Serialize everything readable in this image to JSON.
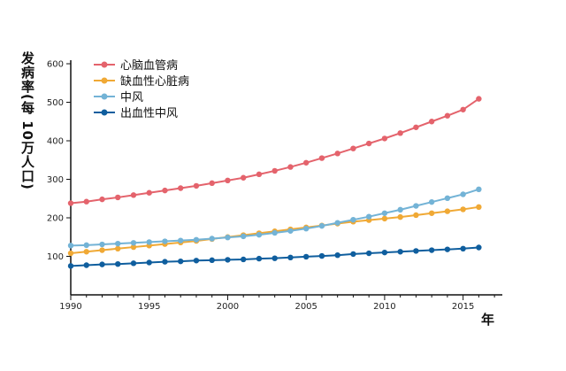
{
  "chart_data": {
    "type": "line",
    "ylabel": "发病率(每 10万人口)",
    "xlabel": "年",
    "xlim": [
      1990,
      2017.5
    ],
    "ylim": [
      0,
      600
    ],
    "x_ticks": [
      1990,
      1995,
      2000,
      2005,
      2010,
      2015
    ],
    "y_ticks": [
      100,
      200,
      300,
      400,
      500,
      600
    ],
    "grid": false,
    "legend_position": "top-left",
    "x": [
      1990,
      1991,
      1992,
      1993,
      1994,
      1995,
      1996,
      1997,
      1998,
      1999,
      2000,
      2001,
      2002,
      2003,
      2004,
      2005,
      2006,
      2007,
      2008,
      2009,
      2010,
      2011,
      2012,
      2013,
      2014,
      2015,
      2016
    ],
    "series": [
      {
        "name": "心脑血管病",
        "color": "#e4636c",
        "values": [
          238,
          242,
          248,
          253,
          259,
          265,
          271,
          277,
          283,
          290,
          297,
          304,
          313,
          322,
          332,
          343,
          355,
          367,
          380,
          393,
          406,
          420,
          435,
          450,
          465,
          481,
          509
        ]
      },
      {
        "name": "缺血性心脏病",
        "color": "#f0a935",
        "values": [
          108,
          112,
          116,
          120,
          124,
          128,
          132,
          136,
          140,
          145,
          150,
          155,
          160,
          165,
          170,
          175,
          180,
          185,
          190,
          194,
          198,
          202,
          207,
          212,
          217,
          222,
          228
        ]
      },
      {
        "name": "中风",
        "color": "#73b3d6",
        "values": [
          128,
          129,
          131,
          133,
          135,
          137,
          139,
          141,
          143,
          146,
          149,
          152,
          156,
          161,
          166,
          172,
          179,
          187,
          195,
          203,
          212,
          221,
          231,
          241,
          251,
          261,
          274
        ]
      },
      {
        "name": "出血性中风",
        "color": "#0f5e9e",
        "values": [
          75,
          77,
          79,
          80,
          82,
          84,
          86,
          87,
          89,
          90,
          91,
          92,
          94,
          95,
          97,
          99,
          101,
          103,
          106,
          108,
          110,
          112,
          114,
          116,
          118,
          120,
          123
        ]
      }
    ]
  }
}
